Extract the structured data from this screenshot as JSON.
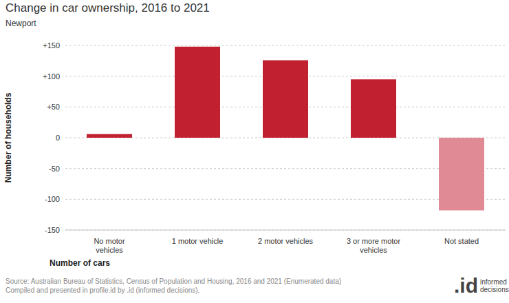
{
  "chart_data": {
    "type": "bar",
    "title": "Change in car ownership, 2016 to 2021",
    "subtitle": "Newport",
    "x_label": "Number of cars",
    "y_label": "Number of households",
    "categories": [
      "No motor vehicles",
      "1 motor vehicle",
      "2 motor vehicles",
      "3 or more motor vehicles",
      "Not stated"
    ],
    "values": [
      6,
      148,
      126,
      95,
      -118
    ],
    "colors": [
      "#c0202f",
      "#c0202f",
      "#c0202f",
      "#c0202f",
      "#e08a96"
    ],
    "ylim": [
      -150,
      150
    ],
    "yticks": [
      -150,
      -100,
      -50,
      0,
      {
        "value": 50,
        "label": "+50"
      },
      {
        "value": 100,
        "label": "+100"
      },
      {
        "value": 150,
        "label": "+150"
      }
    ],
    "grid": true,
    "source": [
      "Source: Australian Bureau of Statistics, Census of Population and Housing, 2016 and 2021 (Enumerated data)",
      "Compiled and presented in profile.id by .id (informed decisions)."
    ],
    "logo": ".id",
    "logo_text": "informed decisions"
  }
}
